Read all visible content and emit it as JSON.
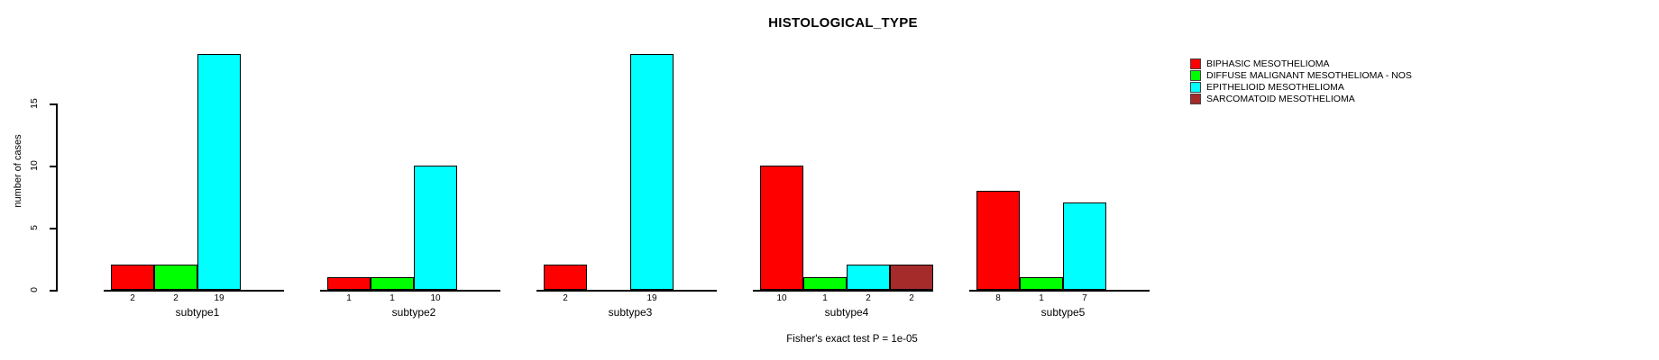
{
  "chart_data": {
    "type": "bar",
    "title": "HISTOLOGICAL_TYPE",
    "ylabel": "number of cases",
    "footnote": "Fisher's exact test P = 1e-05",
    "categories": [
      "subtype1",
      "subtype2",
      "subtype3",
      "subtype4",
      "subtype5"
    ],
    "series": [
      {
        "name": "BIPHASIC MESOTHELIOMA",
        "color": "#FF0000",
        "values": [
          2,
          1,
          2,
          10,
          8
        ]
      },
      {
        "name": "DIFFUSE MALIGNANT MESOTHELIOMA - NOS",
        "color": "#00FF00",
        "values": [
          2,
          1,
          0,
          1,
          1
        ]
      },
      {
        "name": "EPITHELIOID MESOTHELIOMA",
        "color": "#00FFFF",
        "values": [
          19,
          10,
          19,
          2,
          7
        ]
      },
      {
        "name": "SARCOMATOID MESOTHELIOMA",
        "color": "#A52A2A",
        "values": [
          0,
          0,
          0,
          2,
          0
        ]
      }
    ],
    "yticks": [
      0,
      5,
      10,
      15
    ],
    "ylim": [
      0,
      19
    ],
    "grid": false,
    "legend_position": "top-right",
    "bar_value_labels_shown": true,
    "colors": {
      "background": "#FFFFFF",
      "axis": "#000000",
      "text": "#000000"
    }
  }
}
